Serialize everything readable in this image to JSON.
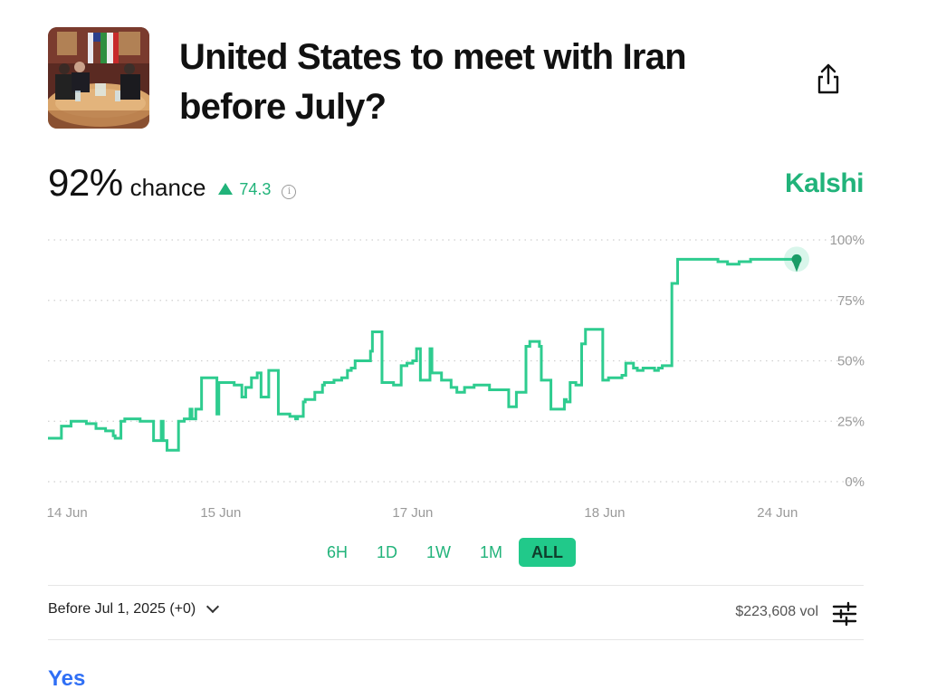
{
  "market": {
    "title_line1": "United States to meet with Iran",
    "title_line2": "before July?"
  },
  "summary": {
    "percent": "92%",
    "chance_label": "chance",
    "delta": "74.3",
    "info_symbol": "i",
    "brand": "Kalshi"
  },
  "colors": {
    "accent": "#21b37a",
    "line": "#2ecc8f",
    "yes": "#2f6ff5"
  },
  "range_tabs": [
    "6H",
    "1D",
    "1W",
    "1M",
    "ALL"
  ],
  "active_range": "ALL",
  "outcome_selector": "Before Jul 1, 2025 (+0)",
  "volume": "$223,608 vol",
  "yes_label": "Yes",
  "chart_data": {
    "type": "line",
    "title": "",
    "xlabel": "",
    "ylabel": "",
    "ylim": [
      0,
      100
    ],
    "y_ticks": [
      "100%",
      "75%",
      "50%",
      "25%",
      "0%"
    ],
    "y_tick_values": [
      100,
      75,
      50,
      25,
      0
    ],
    "x_tick_labels": [
      "14 Jun",
      "15 Jun",
      "17 Jun",
      "18 Jun",
      "24 Jun"
    ],
    "x_tick_positions": [
      0.5,
      4.5,
      9.5,
      14.5,
      19.0
    ],
    "grid": true,
    "series": [
      {
        "step": true,
        "x": [
          0,
          0.35,
          0.6,
          1.0,
          1.25,
          1.5,
          1.7,
          1.75,
          1.9,
          2.0,
          2.4,
          2.75,
          2.95,
          3.0,
          3.1,
          3.4,
          3.55,
          3.7,
          3.75,
          3.85,
          4.0,
          4.1,
          4.2,
          4.4,
          4.45,
          4.8,
          4.85,
          5.05,
          5.15,
          5.3,
          5.45,
          5.55,
          5.75,
          6.0,
          6.3,
          6.45,
          6.5,
          6.65,
          6.7,
          6.95,
          7.15,
          7.2,
          7.35,
          7.45,
          7.5,
          7.65,
          7.8,
          7.9,
          8.0,
          8.4,
          8.45,
          8.7,
          9.0,
          9.2,
          9.35,
          9.45,
          9.5,
          9.6,
          9.7,
          9.95,
          10.0,
          10.25,
          10.5,
          10.65,
          10.85,
          11.1,
          11.5,
          11.6,
          11.75,
          12.0,
          12.2,
          12.45,
          12.55,
          12.8,
          12.85,
          13.1,
          13.35,
          13.45,
          13.5,
          13.6,
          13.75,
          13.9,
          14.0,
          14.35,
          14.45,
          14.6,
          14.65,
          14.95,
          15.05,
          15.25,
          15.35,
          15.5,
          15.7,
          15.8,
          15.9,
          16.0,
          16.25,
          16.4,
          17.0,
          17.1,
          17.35,
          17.45,
          17.7,
          18.0,
          18.3,
          18.85,
          18.95,
          19.05,
          19.35,
          19.5
        ],
        "values": [
          18,
          23,
          25,
          24,
          22,
          21,
          19,
          18,
          25,
          26,
          25,
          17,
          25,
          17,
          13,
          25,
          26,
          30,
          26,
          30,
          43,
          43,
          43,
          28,
          41,
          41,
          40,
          35,
          39,
          43,
          45,
          35,
          46,
          28,
          27,
          26,
          27,
          33,
          34,
          37,
          40,
          41,
          41,
          42,
          42,
          43,
          46,
          47,
          50,
          54,
          62,
          41,
          40,
          48,
          49,
          49,
          50,
          55,
          42,
          55,
          45,
          42,
          39,
          37,
          39,
          40,
          38,
          38,
          38,
          31,
          37,
          56,
          58,
          56,
          42,
          30,
          30,
          34,
          33,
          41,
          40,
          57,
          63,
          63,
          42,
          43,
          43,
          44,
          49,
          47,
          46,
          47,
          47,
          46,
          47,
          48,
          82,
          92,
          92,
          92,
          92,
          91,
          90,
          91,
          92,
          92,
          92,
          92,
          92,
          92
        ]
      }
    ],
    "x_domain": [
      0,
      19.5
    ]
  }
}
